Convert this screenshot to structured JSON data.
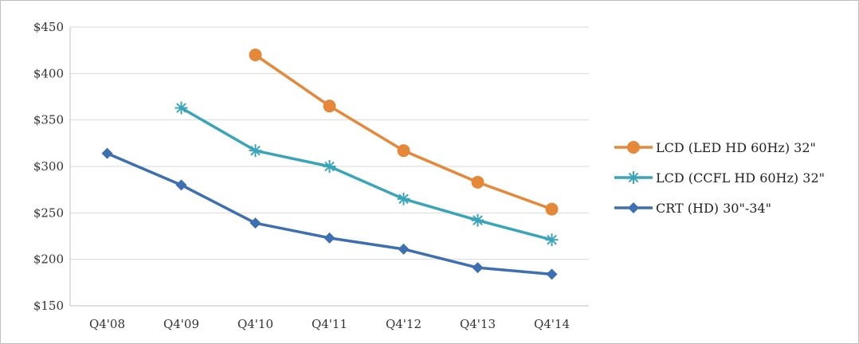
{
  "chart_data": {
    "type": "line",
    "title": "",
    "xlabel": "",
    "ylabel": "",
    "categories": [
      "Q4'08",
      "Q4'09",
      "Q4'10",
      "Q4'11",
      "Q4'12",
      "Q4'13",
      "Q4'14"
    ],
    "ylim": [
      150,
      450
    ],
    "yticks": [
      150,
      200,
      250,
      300,
      350,
      400,
      450
    ],
    "ytick_labels": [
      "$150",
      "$200",
      "$250",
      "$300",
      "$350",
      "$400",
      "$450"
    ],
    "grid": "horizontal",
    "legend_position": "right",
    "series": [
      {
        "name": "LCD (LED HD 60Hz) 32\"",
        "color": "#e6883a",
        "marker": "circle",
        "values": [
          null,
          null,
          420,
          365,
          317,
          283,
          254
        ]
      },
      {
        "name": "LCD (CCFL HD 60Hz) 32\"",
        "color": "#3aa5b9",
        "marker": "asterisk",
        "values": [
          null,
          363,
          317,
          300,
          265,
          242,
          221
        ]
      },
      {
        "name": "CRT (HD) 30\"-34\"",
        "color": "#3e6fb0",
        "marker": "diamond",
        "values": [
          314,
          280,
          239,
          223,
          211,
          191,
          184
        ]
      }
    ]
  }
}
